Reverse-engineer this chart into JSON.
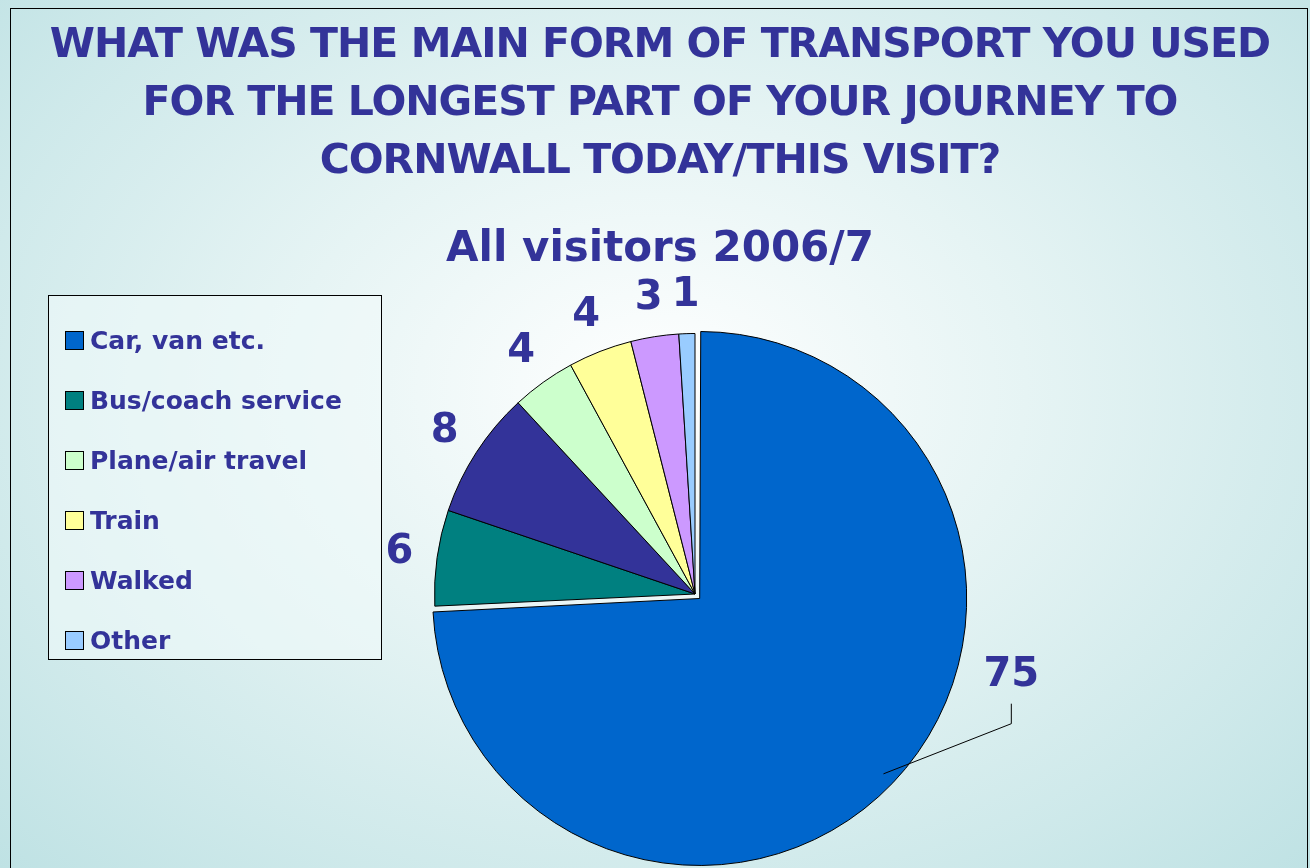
{
  "chart_data": {
    "type": "pie",
    "title": "WHAT WAS THE MAIN FORM OF TRANSPORT YOU USED FOR THE LONGEST PART OF YOUR JOURNEY TO CORNWALL TODAY/THIS VISIT?",
    "subtitle": "All visitors 2006/7",
    "categories": [
      "Car, van etc.",
      "Bus/coach service",
      null,
      "Plane/air travel",
      "Train",
      "Walked",
      "Other"
    ],
    "values": [
      75,
      6,
      8,
      4,
      4,
      3,
      1
    ],
    "colors": [
      "#0066cc",
      "#008080",
      "#333399",
      "#ccffcc",
      "#ffff99",
      "#cc99ff",
      "#99ccff"
    ],
    "data_labels": true,
    "legend": "left"
  }
}
